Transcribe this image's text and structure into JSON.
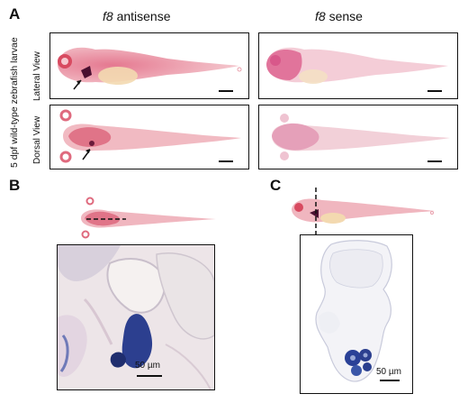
{
  "figure": {
    "panels": {
      "a": "A",
      "b": "B",
      "c": "C"
    },
    "columns": {
      "antisense_gene": "f8",
      "antisense_label": " antisense",
      "sense_gene": "f8",
      "sense_label": " sense"
    },
    "side_labels": {
      "sample": "5 dpf wild-type zebrafish larvae",
      "lateral": "Lateral View",
      "dorsal": "Dorsal View"
    },
    "scale_labels": {
      "b": "50 µm",
      "c": "50 µm"
    },
    "colors": {
      "stain_pink": "#d9607a",
      "stain_blue": "#2a3f8f",
      "background": "#ffffff",
      "frame": "#111111"
    }
  }
}
